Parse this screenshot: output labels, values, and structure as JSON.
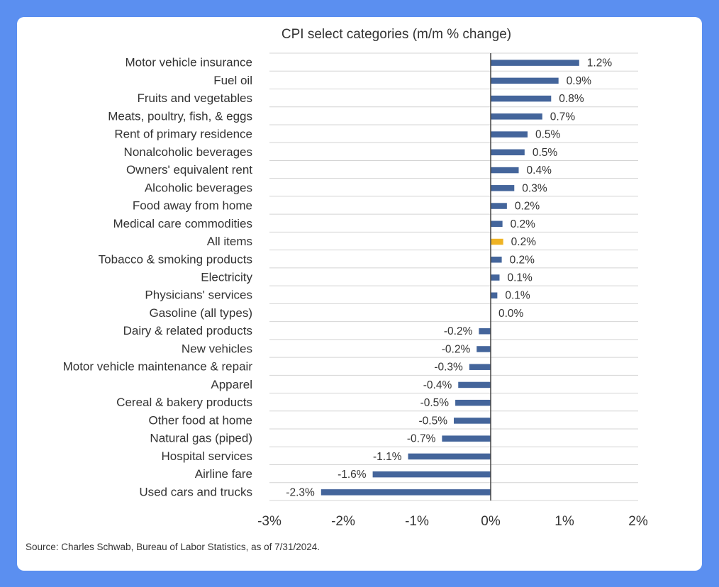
{
  "colors": {
    "bar": "#44659b",
    "highlight": "#efb324",
    "grid": "#d4d4d4",
    "axis": "#444444"
  },
  "source": "Source: Charles Schwab, Bureau of Labor Statistics, as of 7/31/2024.",
  "chart_data": {
    "type": "bar",
    "orientation": "horizontal",
    "title": "CPI select categories (m/m % change)",
    "xlabel": "",
    "ylabel": "",
    "xlim": [
      -3,
      2
    ],
    "xticks": [
      -3,
      -2,
      -1,
      0,
      1,
      2
    ],
    "xtick_labels": [
      "-3%",
      "-2%",
      "-1%",
      "0%",
      "1%",
      "2%"
    ],
    "grid": "horizontal",
    "highlight_category": "All items",
    "categories": [
      "Motor vehicle insurance",
      "Fuel oil",
      "Fruits and vegetables",
      "Meats, poultry, fish, & eggs",
      "Rent of primary residence",
      "Nonalcoholic beverages",
      "Owners' equivalent rent",
      "Alcoholic beverages",
      "Food away from home",
      "Medical care commodities",
      "All items",
      "Tobacco & smoking products",
      "Electricity",
      "Physicians' services",
      "Gasoline (all types)",
      "Dairy & related products",
      "New vehicles",
      "Motor vehicle maintenance & repair",
      "Apparel",
      "Cereal & bakery products",
      "Other food at home",
      "Natural gas (piped)",
      "Hospital services",
      "Airline fare",
      "Used cars and trucks"
    ],
    "values": [
      1.2,
      0.92,
      0.82,
      0.7,
      0.5,
      0.46,
      0.38,
      0.32,
      0.22,
      0.16,
      0.17,
      0.15,
      0.12,
      0.09,
      0.0,
      -0.16,
      -0.19,
      -0.29,
      -0.44,
      -0.48,
      -0.5,
      -0.66,
      -1.12,
      -1.6,
      -2.3
    ],
    "value_labels": [
      "1.2%",
      "0.9%",
      "0.8%",
      "0.7%",
      "0.5%",
      "0.5%",
      "0.4%",
      "0.3%",
      "0.2%",
      "0.2%",
      "0.2%",
      "0.2%",
      "0.1%",
      "0.1%",
      "0.0%",
      "-0.2%",
      "-0.2%",
      "-0.3%",
      "-0.4%",
      "-0.5%",
      "-0.5%",
      "-0.7%",
      "-1.1%",
      "-1.6%",
      "-2.3%"
    ]
  }
}
